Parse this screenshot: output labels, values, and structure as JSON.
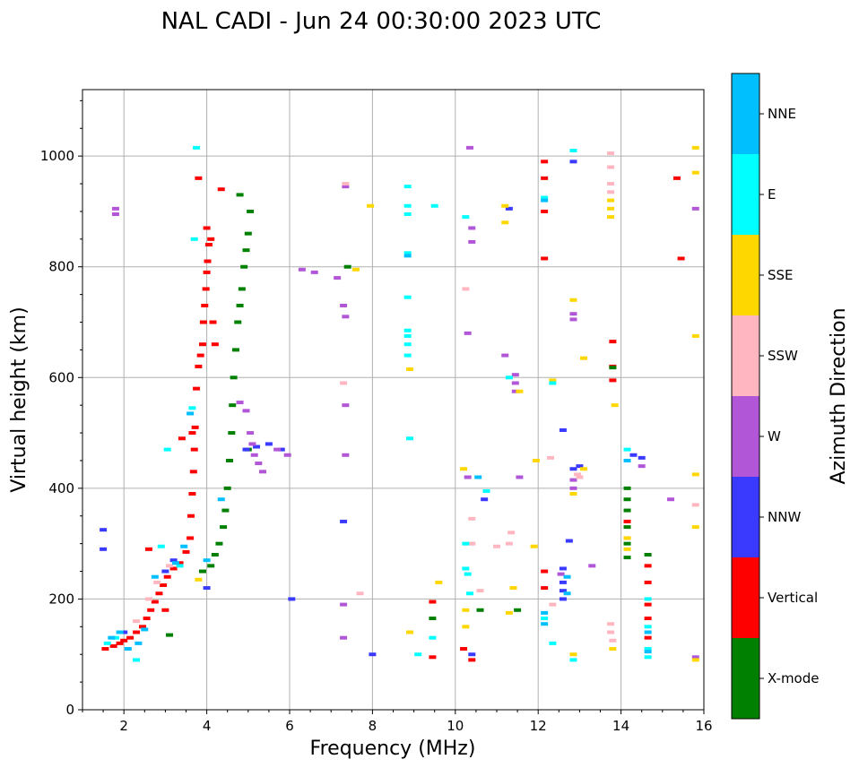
{
  "chart_data": {
    "type": "scatter",
    "title": "NAL CADI - Jun 24 00:30:00 2023 UTC",
    "xlabel": "Frequency (MHz)",
    "ylabel": "Virtual height (km)",
    "xlim": [
      1,
      16
    ],
    "ylim": [
      0,
      1120
    ],
    "xticks": [
      2,
      4,
      6,
      8,
      10,
      12,
      14,
      16
    ],
    "yticks": [
      0,
      200,
      400,
      600,
      800,
      1000
    ],
    "grid": true,
    "colorbar": {
      "label": "Azimuth Direction",
      "categories": [
        {
          "name": "X-mode",
          "color": "#008000"
        },
        {
          "name": "Vertical",
          "color": "#ff0000"
        },
        {
          "name": "NNW",
          "color": "#3a3aff"
        },
        {
          "name": "W",
          "color": "#b256d8"
        },
        {
          "name": "SSW",
          "color": "#ffb6c1"
        },
        {
          "name": "SSE",
          "color": "#ffd700"
        },
        {
          "name": "E",
          "color": "#00ffff"
        },
        {
          "name": "NNE",
          "color": "#00bfff"
        }
      ]
    },
    "series": [
      {
        "name": "Vertical",
        "points": [
          [
            1.55,
            110
          ],
          [
            1.75,
            115
          ],
          [
            1.9,
            120
          ],
          [
            2.0,
            125
          ],
          [
            2.15,
            130
          ],
          [
            2.3,
            140
          ],
          [
            2.45,
            150
          ],
          [
            2.55,
            165
          ],
          [
            2.65,
            180
          ],
          [
            2.75,
            195
          ],
          [
            2.85,
            210
          ],
          [
            2.95,
            225
          ],
          [
            3.05,
            240
          ],
          [
            3.2,
            255
          ],
          [
            3.35,
            265
          ],
          [
            3.5,
            285
          ],
          [
            3.6,
            310
          ],
          [
            3.62,
            350
          ],
          [
            3.65,
            390
          ],
          [
            3.68,
            430
          ],
          [
            3.7,
            470
          ],
          [
            3.72,
            510
          ],
          [
            3.75,
            580
          ],
          [
            3.8,
            620
          ],
          [
            3.85,
            640
          ],
          [
            3.9,
            660
          ],
          [
            3.92,
            700
          ],
          [
            3.95,
            730
          ],
          [
            3.98,
            760
          ],
          [
            4.0,
            790
          ],
          [
            4.02,
            810
          ],
          [
            4.05,
            840
          ],
          [
            4.0,
            870
          ],
          [
            4.1,
            850
          ],
          [
            4.15,
            700
          ],
          [
            4.2,
            660
          ],
          [
            3.65,
            500
          ],
          [
            3.4,
            490
          ],
          [
            3.0,
            180
          ],
          [
            2.6,
            290
          ],
          [
            3.8,
            960
          ],
          [
            4.35,
            940
          ],
          [
            12.15,
            960
          ],
          [
            12.15,
            990
          ],
          [
            12.15,
            900
          ],
          [
            12.15,
            815
          ],
          [
            12.15,
            250
          ],
          [
            12.15,
            220
          ],
          [
            13.8,
            620
          ],
          [
            13.8,
            595
          ],
          [
            13.8,
            665
          ],
          [
            14.15,
            340
          ],
          [
            14.15,
            310
          ],
          [
            14.65,
            260
          ],
          [
            14.65,
            230
          ],
          [
            14.65,
            190
          ],
          [
            14.65,
            165
          ],
          [
            14.65,
            130
          ],
          [
            15.35,
            960
          ],
          [
            15.45,
            815
          ],
          [
            9.45,
            95
          ],
          [
            9.45,
            195
          ],
          [
            10.4,
            90
          ],
          [
            10.2,
            110
          ]
        ]
      },
      {
        "name": "X-mode",
        "points": [
          [
            3.9,
            250
          ],
          [
            4.1,
            260
          ],
          [
            4.2,
            280
          ],
          [
            4.3,
            300
          ],
          [
            4.4,
            330
          ],
          [
            4.45,
            360
          ],
          [
            4.5,
            400
          ],
          [
            4.55,
            450
          ],
          [
            4.6,
            500
          ],
          [
            4.62,
            550
          ],
          [
            4.65,
            600
          ],
          [
            4.7,
            650
          ],
          [
            4.75,
            700
          ],
          [
            4.8,
            730
          ],
          [
            4.85,
            760
          ],
          [
            4.9,
            800
          ],
          [
            4.95,
            830
          ],
          [
            5.0,
            860
          ],
          [
            5.05,
            900
          ],
          [
            4.8,
            930
          ],
          [
            3.1,
            135
          ],
          [
            5.0,
            470
          ],
          [
            7.4,
            800
          ],
          [
            10.6,
            180
          ],
          [
            11.5,
            180
          ],
          [
            14.15,
            400
          ],
          [
            14.15,
            380
          ],
          [
            14.15,
            360
          ],
          [
            14.15,
            330
          ],
          [
            14.15,
            300
          ],
          [
            14.15,
            275
          ],
          [
            13.8,
            618
          ],
          [
            14.65,
            280
          ],
          [
            9.45,
            165
          ]
        ]
      },
      {
        "name": "NNW",
        "points": [
          [
            1.5,
            325
          ],
          [
            1.5,
            290
          ],
          [
            2.0,
            140
          ],
          [
            3.0,
            250
          ],
          [
            3.2,
            270
          ],
          [
            4.0,
            220
          ],
          [
            4.95,
            470
          ],
          [
            5.2,
            475
          ],
          [
            5.5,
            480
          ],
          [
            5.8,
            470
          ],
          [
            6.05,
            200
          ],
          [
            7.3,
            340
          ],
          [
            10.7,
            380
          ],
          [
            11.3,
            905
          ],
          [
            12.6,
            505
          ],
          [
            12.6,
            255
          ],
          [
            12.6,
            230
          ],
          [
            12.6,
            215
          ],
          [
            12.6,
            200
          ],
          [
            12.75,
            305
          ],
          [
            12.85,
            435
          ],
          [
            12.85,
            990
          ],
          [
            13.0,
            440
          ],
          [
            14.3,
            460
          ],
          [
            14.5,
            455
          ],
          [
            8.0,
            100
          ],
          [
            10.4,
            100
          ]
        ]
      },
      {
        "name": "W",
        "points": [
          [
            4.8,
            555
          ],
          [
            4.95,
            540
          ],
          [
            5.05,
            500
          ],
          [
            5.1,
            480
          ],
          [
            5.15,
            460
          ],
          [
            5.25,
            445
          ],
          [
            5.35,
            430
          ],
          [
            5.7,
            470
          ],
          [
            5.95,
            460
          ],
          [
            6.3,
            795
          ],
          [
            6.6,
            790
          ],
          [
            7.15,
            780
          ],
          [
            7.3,
            730
          ],
          [
            7.35,
            710
          ],
          [
            7.35,
            550
          ],
          [
            7.35,
            460
          ],
          [
            7.35,
            945
          ],
          [
            10.35,
            1015
          ],
          [
            10.4,
            870
          ],
          [
            10.4,
            845
          ],
          [
            10.3,
            680
          ],
          [
            10.3,
            420
          ],
          [
            11.2,
            640
          ],
          [
            11.45,
            605
          ],
          [
            11.45,
            590
          ],
          [
            11.45,
            575
          ],
          [
            11.55,
            420
          ],
          [
            12.55,
            245
          ],
          [
            12.85,
            715
          ],
          [
            12.85,
            705
          ],
          [
            12.85,
            415
          ],
          [
            12.85,
            400
          ],
          [
            13.3,
            260
          ],
          [
            14.5,
            440
          ],
          [
            15.2,
            380
          ],
          [
            15.8,
            905
          ],
          [
            15.8,
            95
          ],
          [
            1.8,
            905
          ],
          [
            1.8,
            895
          ],
          [
            7.3,
            190
          ],
          [
            7.3,
            130
          ]
        ]
      },
      {
        "name": "SSW",
        "points": [
          [
            2.3,
            160
          ],
          [
            2.6,
            200
          ],
          [
            2.8,
            230
          ],
          [
            3.1,
            260
          ],
          [
            7.3,
            590
          ],
          [
            7.35,
            950
          ],
          [
            7.7,
            210
          ],
          [
            10.25,
            760
          ],
          [
            10.4,
            345
          ],
          [
            10.4,
            300
          ],
          [
            10.6,
            215
          ],
          [
            11.0,
            295
          ],
          [
            11.35,
            320
          ],
          [
            11.3,
            300
          ],
          [
            12.3,
            455
          ],
          [
            12.35,
            190
          ],
          [
            12.95,
            425
          ],
          [
            13.0,
            420
          ],
          [
            13.75,
            1005
          ],
          [
            13.75,
            980
          ],
          [
            13.75,
            950
          ],
          [
            13.75,
            935
          ],
          [
            13.75,
            155
          ],
          [
            13.75,
            140
          ],
          [
            13.8,
            125
          ],
          [
            15.8,
            370
          ]
        ]
      },
      {
        "name": "SSE",
        "points": [
          [
            3.8,
            235
          ],
          [
            7.6,
            795
          ],
          [
            7.95,
            910
          ],
          [
            8.9,
            140
          ],
          [
            8.9,
            615
          ],
          [
            9.6,
            230
          ],
          [
            10.2,
            435
          ],
          [
            10.25,
            150
          ],
          [
            10.25,
            180
          ],
          [
            11.2,
            910
          ],
          [
            11.2,
            880
          ],
          [
            11.3,
            175
          ],
          [
            11.4,
            220
          ],
          [
            11.55,
            575
          ],
          [
            11.9,
            295
          ],
          [
            11.95,
            450
          ],
          [
            12.35,
            595
          ],
          [
            12.85,
            740
          ],
          [
            12.85,
            390
          ],
          [
            13.1,
            635
          ],
          [
            13.1,
            435
          ],
          [
            12.85,
            100
          ],
          [
            13.75,
            920
          ],
          [
            13.75,
            905
          ],
          [
            13.75,
            890
          ],
          [
            13.8,
            110
          ],
          [
            13.85,
            550
          ],
          [
            14.15,
            310
          ],
          [
            14.15,
            290
          ],
          [
            15.8,
            1015
          ],
          [
            15.8,
            970
          ],
          [
            15.8,
            675
          ],
          [
            15.8,
            425
          ],
          [
            15.8,
            330
          ],
          [
            15.8,
            90
          ]
        ]
      },
      {
        "name": "E",
        "points": [
          [
            1.6,
            120
          ],
          [
            1.8,
            130
          ],
          [
            2.3,
            90
          ],
          [
            2.9,
            295
          ],
          [
            3.05,
            470
          ],
          [
            3.35,
            260
          ],
          [
            3.65,
            545
          ],
          [
            3.75,
            1015
          ],
          [
            3.7,
            850
          ],
          [
            8.85,
            945
          ],
          [
            8.85,
            910
          ],
          [
            8.85,
            895
          ],
          [
            8.85,
            825
          ],
          [
            8.85,
            745
          ],
          [
            8.85,
            685
          ],
          [
            8.85,
            675
          ],
          [
            8.85,
            660
          ],
          [
            8.85,
            640
          ],
          [
            8.9,
            490
          ],
          [
            9.1,
            100
          ],
          [
            9.45,
            130
          ],
          [
            9.5,
            910
          ],
          [
            10.25,
            890
          ],
          [
            10.25,
            300
          ],
          [
            10.25,
            255
          ],
          [
            10.3,
            245
          ],
          [
            10.35,
            210
          ],
          [
            10.75,
            395
          ],
          [
            11.3,
            600
          ],
          [
            12.15,
            925
          ],
          [
            12.15,
            165
          ],
          [
            12.35,
            590
          ],
          [
            12.35,
            120
          ],
          [
            12.85,
            1010
          ],
          [
            12.85,
            90
          ],
          [
            14.15,
            470
          ],
          [
            14.65,
            200
          ],
          [
            14.65,
            150
          ],
          [
            14.65,
            110
          ],
          [
            14.65,
            95
          ]
        ]
      },
      {
        "name": "NNE",
        "points": [
          [
            1.7,
            130
          ],
          [
            1.9,
            140
          ],
          [
            2.1,
            110
          ],
          [
            2.35,
            120
          ],
          [
            2.5,
            145
          ],
          [
            2.75,
            240
          ],
          [
            3.25,
            265
          ],
          [
            3.45,
            295
          ],
          [
            3.6,
            535
          ],
          [
            4.35,
            380
          ],
          [
            4.0,
            270
          ],
          [
            8.85,
            820
          ],
          [
            10.55,
            420
          ],
          [
            12.15,
            920
          ],
          [
            12.15,
            175
          ],
          [
            12.15,
            155
          ],
          [
            12.7,
            240
          ],
          [
            12.7,
            210
          ],
          [
            14.15,
            450
          ],
          [
            14.65,
            140
          ],
          [
            14.65,
            105
          ]
        ]
      }
    ]
  }
}
